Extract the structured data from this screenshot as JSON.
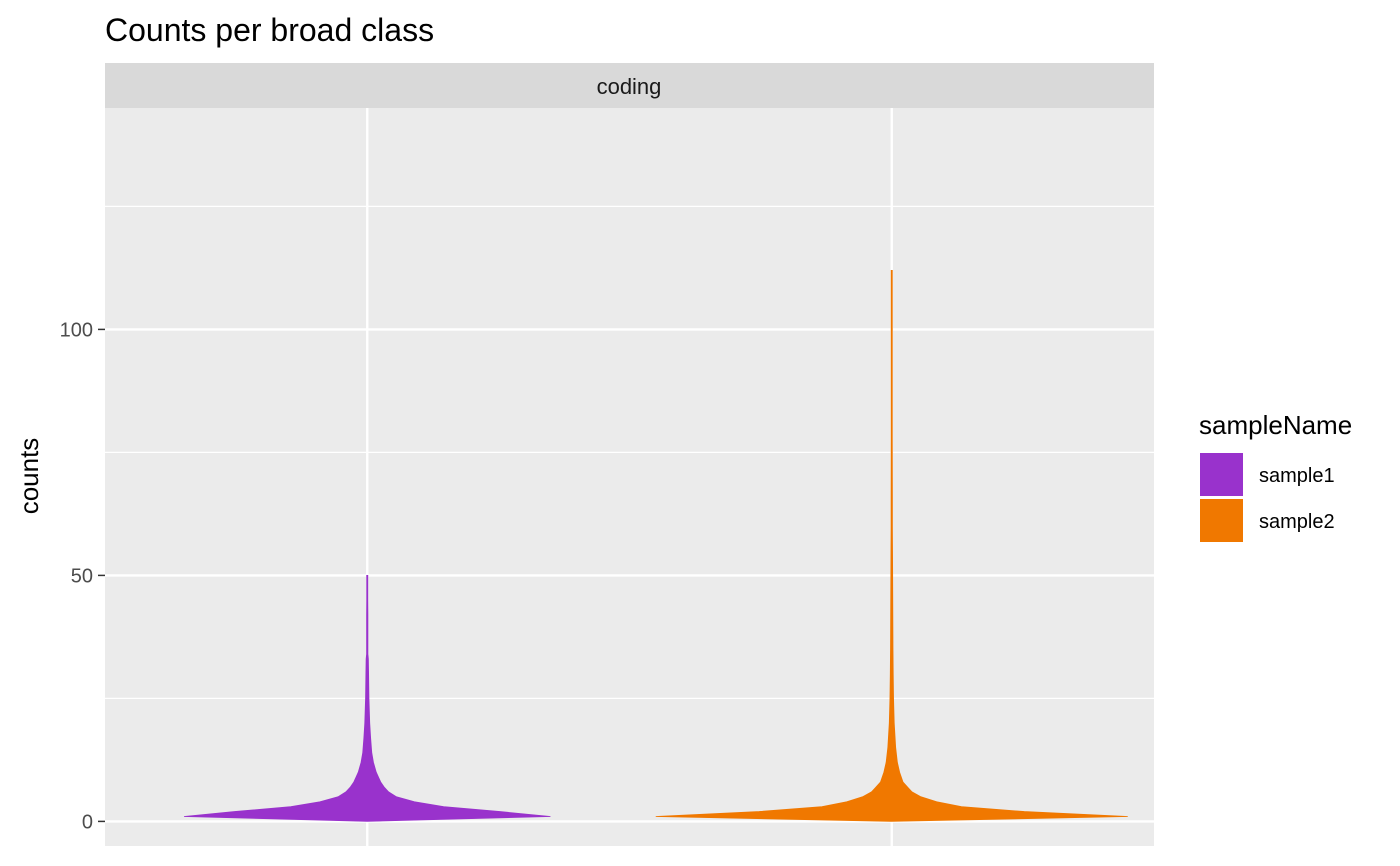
{
  "chart_data": {
    "type": "violin",
    "title": "Counts per broad class",
    "facet_label": "coding",
    "xlabel": "",
    "ylabel": "counts",
    "ylim": [
      -5,
      145
    ],
    "y_ticks": [
      0,
      50,
      100
    ],
    "grid": true,
    "legend": {
      "title": "sampleName",
      "placement": "right"
    },
    "series": [
      {
        "name": "sample1",
        "color": "#9932CC",
        "max": 50,
        "profile": [
          [
            0,
            0.0
          ],
          [
            1,
            163
          ],
          [
            2,
            118
          ],
          [
            3,
            68
          ],
          [
            4,
            42
          ],
          [
            5,
            26
          ],
          [
            6,
            19
          ],
          [
            7,
            15
          ],
          [
            8,
            12
          ],
          [
            9,
            10
          ],
          [
            10,
            8
          ],
          [
            12,
            5.5
          ],
          [
            14,
            4
          ],
          [
            17,
            3
          ],
          [
            20,
            2.2
          ],
          [
            25,
            1.5
          ],
          [
            30,
            1.2
          ],
          [
            33,
            1.0
          ],
          [
            34,
            0.6
          ],
          [
            40,
            0.6
          ],
          [
            42,
            0.6
          ],
          [
            45,
            0.5
          ],
          [
            50,
            0.5
          ]
        ]
      },
      {
        "name": "sample2",
        "color": "#F07800",
        "max": 112,
        "profile": [
          [
            0,
            0.0
          ],
          [
            1,
            210
          ],
          [
            2,
            118
          ],
          [
            3,
            62
          ],
          [
            4,
            40
          ],
          [
            5,
            26
          ],
          [
            6,
            18
          ],
          [
            7,
            14
          ],
          [
            8,
            10
          ],
          [
            10,
            7
          ],
          [
            12,
            5
          ],
          [
            15,
            3.5
          ],
          [
            20,
            2.2
          ],
          [
            25,
            1.6
          ],
          [
            30,
            1.3
          ],
          [
            35,
            1.1
          ],
          [
            40,
            1.0
          ],
          [
            50,
            0.8
          ],
          [
            55,
            0.7
          ],
          [
            60,
            0.6
          ],
          [
            66,
            0.6
          ],
          [
            78,
            0.5
          ],
          [
            88,
            0.5
          ],
          [
            112,
            0.5
          ]
        ]
      }
    ]
  }
}
